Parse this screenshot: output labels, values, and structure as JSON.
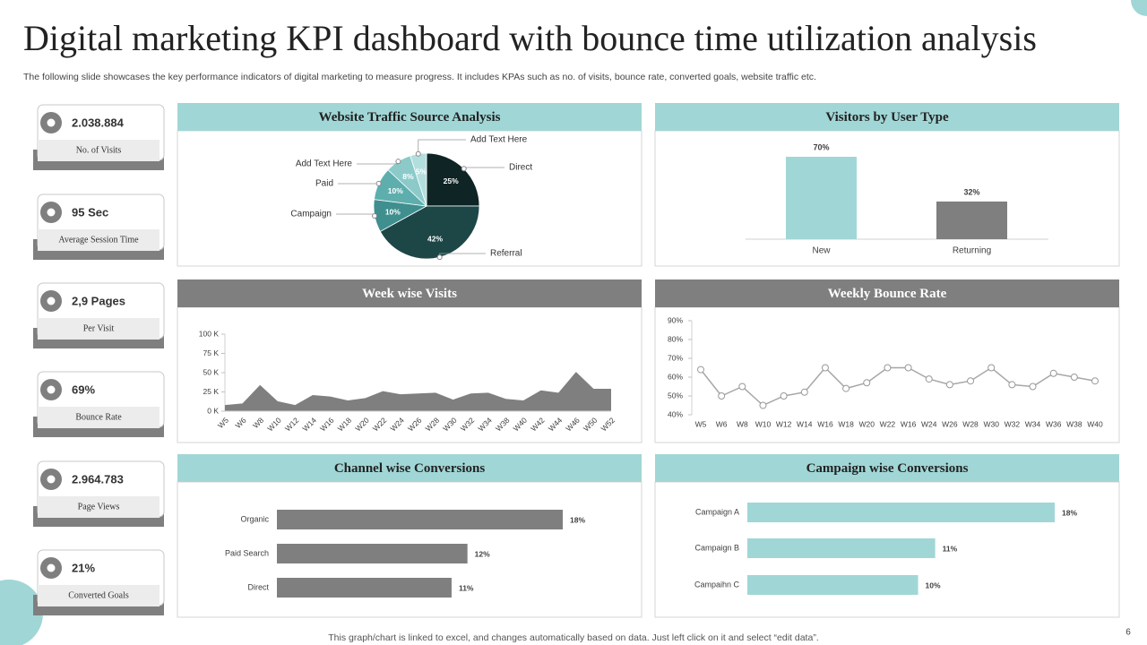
{
  "title": "Digital marketing KPI dashboard with bounce time utilization analysis",
  "subtitle": "The following slide showcases the key performance indicators of digital marketing to measure progress. It includes KPAs such as no. of visits, bounce rate, converted goals, website traffic etc.",
  "footer": "This graph/chart is linked to excel, and changes automatically based on data. Just left click on it and select “edit data”.",
  "page_number": "6",
  "kpis": [
    {
      "value": "2.038.884",
      "label": "No. of Visits"
    },
    {
      "value": "95 Sec",
      "label": "Average Session Time"
    },
    {
      "value": "2,9 Pages",
      "label": "Per Visit"
    },
    {
      "value": "69%",
      "label": "Bounce Rate"
    },
    {
      "value": "2.964.783",
      "label": "Page Views"
    },
    {
      "value": "21%",
      "label": "Converted Goals"
    }
  ],
  "chart_data": [
    {
      "type": "pie",
      "title": "Website Traffic Source Analysis",
      "header_color": "#a1d6d6",
      "categories": [
        "Direct",
        "Referral",
        "Campaign",
        "Paid",
        "Add Text Here",
        "Add Text Here"
      ],
      "values": [
        25,
        42,
        10,
        10,
        8,
        5
      ],
      "value_labels": [
        "25%",
        "42%",
        "10%",
        "10%",
        "8%",
        "5%"
      ],
      "colors": [
        "#0f2424",
        "#1d4747",
        "#3f8f8f",
        "#5eaeae",
        "#8ccaca",
        "#b3dede"
      ]
    },
    {
      "type": "bar",
      "title": "Visitors by User Type",
      "header_color": "#a1d6d6",
      "categories": [
        "New",
        "Returning"
      ],
      "values": [
        70,
        32
      ],
      "value_labels": [
        "70%",
        "32%"
      ],
      "colors": [
        "#a1d6d6",
        "#7f7f7f"
      ]
    },
    {
      "type": "area",
      "title": "Week wise Visits",
      "header_color": "#7f7f7f",
      "color": "#7f7f7f",
      "categories": [
        "W5",
        "W6",
        "W8",
        "W10",
        "W12",
        "W14",
        "W16",
        "W18",
        "W20",
        "W22",
        "W24",
        "W26",
        "W28",
        "W30",
        "W32",
        "W34",
        "W38",
        "W40",
        "W42",
        "W44",
        "W46",
        "W50",
        "W52"
      ],
      "values": [
        8000,
        10000,
        34000,
        13000,
        8000,
        21000,
        19000,
        14000,
        17000,
        26000,
        22000,
        23000,
        24000,
        15000,
        23000,
        24000,
        16000,
        14000,
        27000,
        24000,
        51000,
        29000,
        29000
      ],
      "ylim": [
        0,
        100000
      ],
      "yticks": [
        {
          "value": 0,
          "label": "0 K"
        },
        {
          "value": 25000,
          "label": "25 K"
        },
        {
          "value": 50000,
          "label": "50 K"
        },
        {
          "value": 75000,
          "label": "75 K"
        },
        {
          "value": 100000,
          "label": "100 K"
        }
      ]
    },
    {
      "type": "line",
      "title": "Weekly Bounce Rate",
      "header_color": "#7f7f7f",
      "color": "#a6a6a6",
      "categories": [
        "W5",
        "W6",
        "W8",
        "W10",
        "W12",
        "W14",
        "W16",
        "W18",
        "W20",
        "W22",
        "W16",
        "W24",
        "W26",
        "W28",
        "W30",
        "W32",
        "W34",
        "W36",
        "W38",
        "W40"
      ],
      "values": [
        64,
        50,
        55,
        45,
        50,
        52,
        65,
        54,
        57,
        65,
        65,
        59,
        56,
        58,
        65,
        56,
        55,
        62,
        60,
        58
      ],
      "ylim": [
        40,
        90
      ],
      "yticks": [
        {
          "value": 40,
          "label": "40%"
        },
        {
          "value": 50,
          "label": "50%"
        },
        {
          "value": 60,
          "label": "60%"
        },
        {
          "value": 70,
          "label": "70%"
        },
        {
          "value": 80,
          "label": "80%"
        },
        {
          "value": 90,
          "label": "90%"
        }
      ]
    },
    {
      "type": "bar",
      "horizontal": true,
      "title": "Channel wise Conversions",
      "header_color": "#a1d6d6",
      "color": "#7f7f7f",
      "categories": [
        "Organic",
        "Paid Search",
        "Direct"
      ],
      "values": [
        18,
        12,
        11
      ],
      "value_labels": [
        "18%",
        "12%",
        "11%"
      ]
    },
    {
      "type": "bar",
      "horizontal": true,
      "title": "Campaign  wise Conversions",
      "header_color": "#a1d6d6",
      "color": "#a1d6d6",
      "categories": [
        "Campaign A",
        "Campaign B",
        "Campaihn C"
      ],
      "values": [
        18,
        11,
        10
      ],
      "value_labels": [
        "18%",
        "11%",
        "10%"
      ]
    }
  ]
}
